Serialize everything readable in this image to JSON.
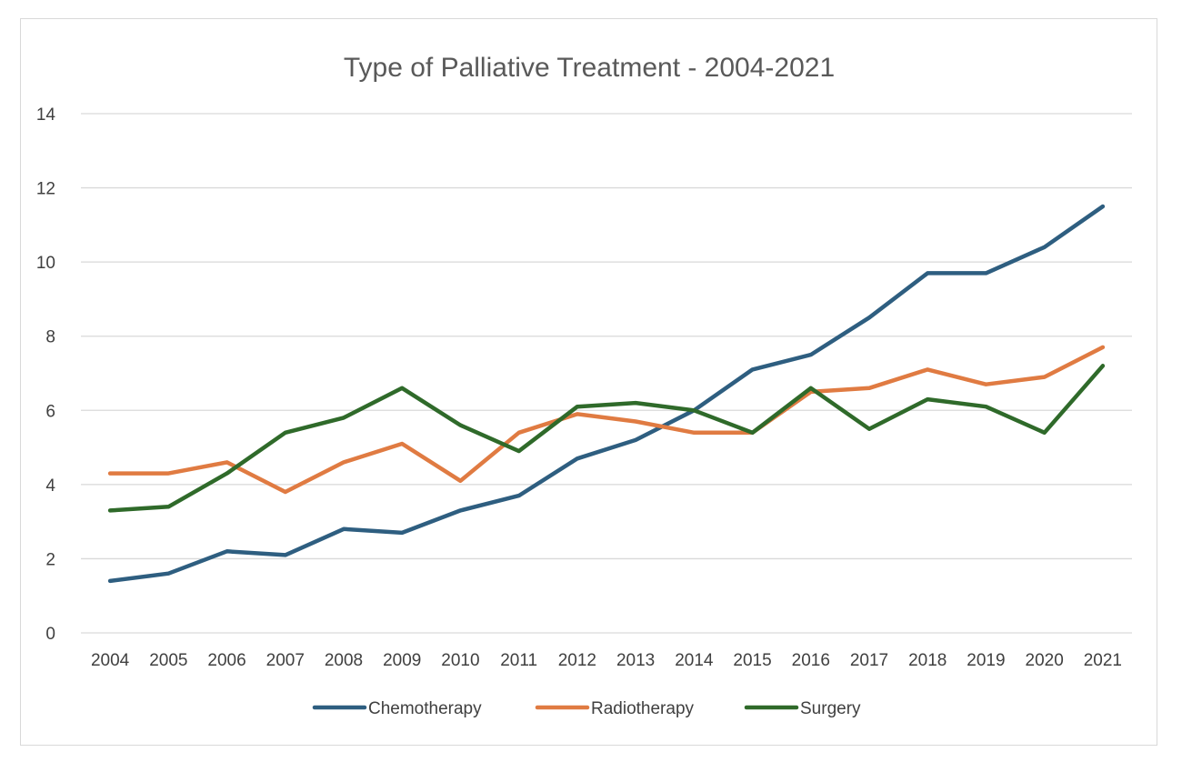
{
  "chart_data": {
    "type": "line",
    "title": "Type of Palliative Treatment - 2004-2021",
    "xlabel": "",
    "ylabel": "",
    "categories": [
      "2004",
      "2005",
      "2006",
      "2007",
      "2008",
      "2009",
      "2010",
      "2011",
      "2012",
      "2013",
      "2014",
      "2015",
      "2016",
      "2017",
      "2018",
      "2019",
      "2020",
      "2021"
    ],
    "ylim": [
      0,
      14
    ],
    "yticks": [
      "0",
      "2",
      "4",
      "6",
      "8",
      "10",
      "12",
      "14"
    ],
    "grid": true,
    "legend_position": "bottom",
    "series": [
      {
        "name": "Chemotherapy",
        "color": "#2e5e80",
        "values": [
          1.4,
          1.6,
          2.2,
          2.1,
          2.8,
          2.7,
          3.3,
          3.7,
          4.7,
          5.2,
          6.0,
          7.1,
          7.5,
          8.5,
          9.7,
          9.7,
          10.4,
          11.5
        ]
      },
      {
        "name": "Radiotherapy",
        "color": "#e07b42",
        "values": [
          4.3,
          4.3,
          4.6,
          3.8,
          4.6,
          5.1,
          4.1,
          5.4,
          5.9,
          5.7,
          5.4,
          5.4,
          6.5,
          6.6,
          7.1,
          6.7,
          6.9,
          7.7
        ]
      },
      {
        "name": "Surgery",
        "color": "#2f6a2a",
        "values": [
          3.3,
          3.4,
          4.3,
          5.4,
          5.8,
          6.6,
          5.6,
          4.9,
          6.1,
          6.2,
          6.0,
          5.4,
          6.6,
          5.5,
          6.3,
          6.1,
          5.4,
          7.2
        ]
      }
    ]
  }
}
